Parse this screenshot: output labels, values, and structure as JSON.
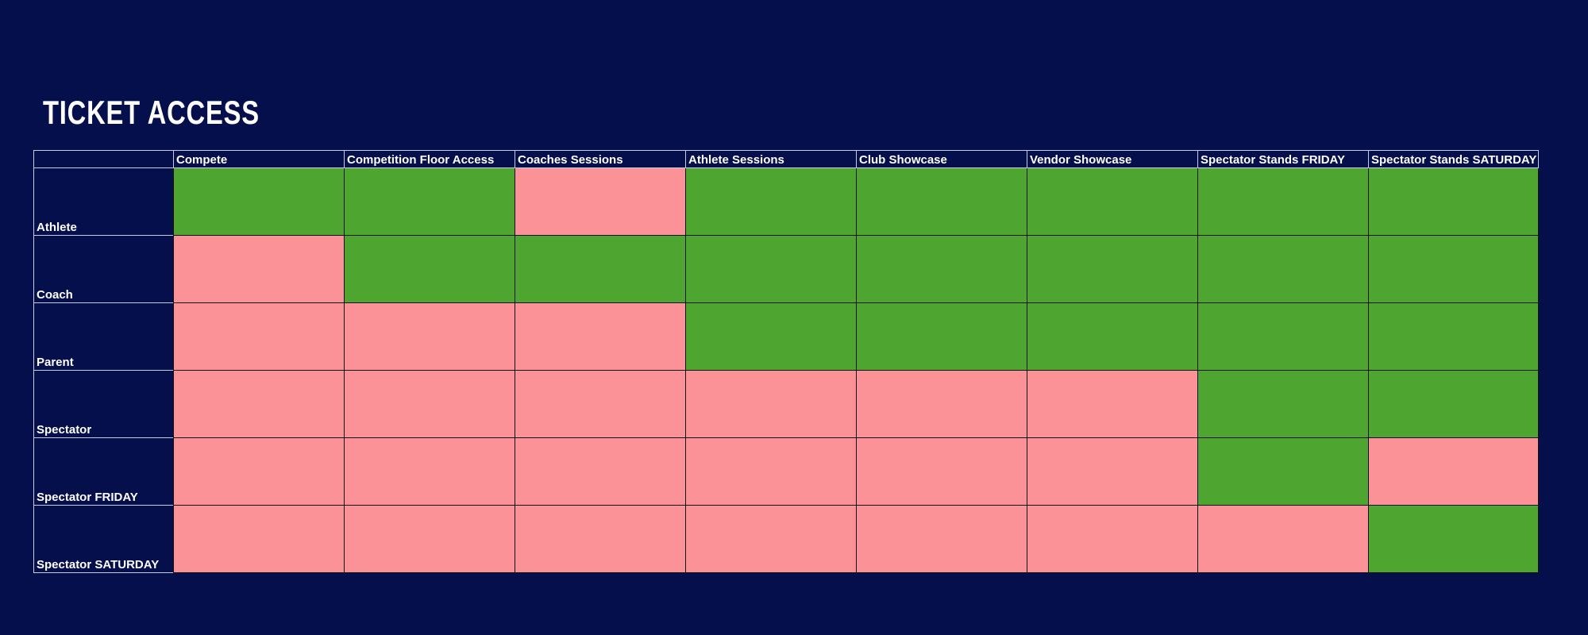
{
  "title": "TICKET ACCESS",
  "colors": {
    "background": "#050f4c",
    "access_granted": "#4ea52f",
    "access_denied": "#fb9297",
    "text": "#ffffff"
  },
  "table": {
    "columns": [
      "Compete",
      "Competition Floor Access",
      "Coaches Sessions",
      "Athlete Sessions",
      "Club Showcase",
      "Vendor Showcase",
      "Spectator Stands FRIDAY",
      "Spectator Stands SATURDAY"
    ],
    "rows": [
      {
        "label": "Athlete",
        "access": [
          true,
          true,
          false,
          true,
          true,
          true,
          true,
          true
        ]
      },
      {
        "label": "Coach",
        "access": [
          false,
          true,
          true,
          true,
          true,
          true,
          true,
          true
        ]
      },
      {
        "label": "Parent",
        "access": [
          false,
          false,
          false,
          true,
          true,
          true,
          true,
          true
        ]
      },
      {
        "label": "Spectator",
        "access": [
          false,
          false,
          false,
          false,
          false,
          false,
          true,
          true
        ]
      },
      {
        "label": "Spectator FRIDAY",
        "access": [
          false,
          false,
          false,
          false,
          false,
          false,
          true,
          false
        ]
      },
      {
        "label": "Spectator SATURDAY",
        "access": [
          false,
          false,
          false,
          false,
          false,
          false,
          false,
          true
        ]
      }
    ]
  }
}
